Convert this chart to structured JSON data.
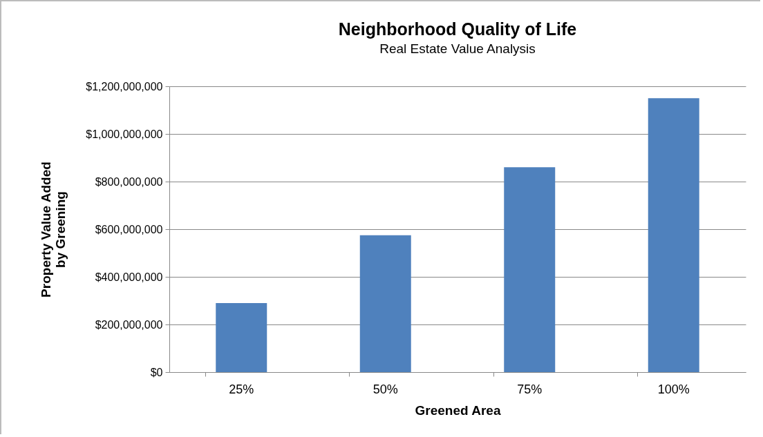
{
  "chart_data": {
    "type": "bar",
    "title": "Neighborhood Quality of Life",
    "subtitle": "Real Estate Value Analysis",
    "xlabel": "Greened Area",
    "ylabel": "Property Value Added\nby Greening",
    "categories": [
      "25%",
      "50%",
      "75%",
      "100%"
    ],
    "values": [
      290000000,
      575000000,
      860000000,
      1150000000
    ],
    "color": "#4f81bd",
    "ylim": [
      0,
      1200000000
    ],
    "yticks": [
      {
        "value": 0,
        "label": "$0"
      },
      {
        "value": 200000000,
        "label": "$200,000,000"
      },
      {
        "value": 400000000,
        "label": "$400,000,000"
      },
      {
        "value": 600000000,
        "label": "$600,000,000"
      },
      {
        "value": 800000000,
        "label": "$800,000,000"
      },
      {
        "value": 1000000000,
        "label": "$1,000,000,000"
      },
      {
        "value": 1200000000,
        "label": "$1,200,000,000"
      }
    ],
    "grid": "y"
  }
}
